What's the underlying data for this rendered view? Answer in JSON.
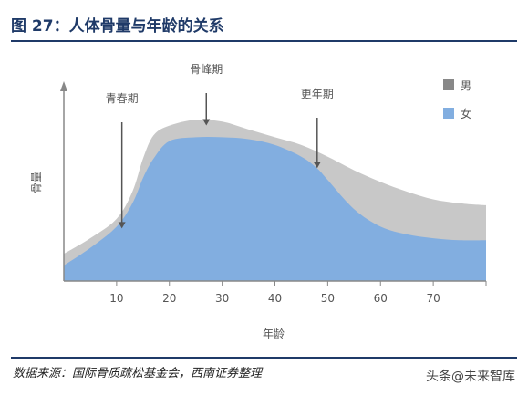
{
  "figure": {
    "title": "图 27：人体骨量与年龄的关系",
    "source": "数据来源：国际骨质疏松基金会，西南证券整理",
    "watermark": "头条@未来智库"
  },
  "colors": {
    "male": "#c8c8c8",
    "female": "#82aee0",
    "axis": "#888888",
    "title": "#1f3a68"
  },
  "chart_data": {
    "type": "area",
    "title": "",
    "xlabel": "年龄",
    "ylabel": "骨量",
    "xlim": [
      0,
      80
    ],
    "ylim": [
      0,
      1
    ],
    "x_ticks": [
      10,
      20,
      30,
      40,
      50,
      60,
      70
    ],
    "legend": {
      "position": "top-right",
      "entries": [
        {
          "name": "男",
          "color": "#888888"
        },
        {
          "name": "女",
          "color": "#82aee0"
        }
      ]
    },
    "series": [
      {
        "name": "男",
        "x": [
          0,
          5,
          10,
          13,
          15,
          17,
          20,
          25,
          30,
          35,
          40,
          45,
          50,
          55,
          60,
          65,
          70,
          75,
          80
        ],
        "values": [
          0.14,
          0.22,
          0.32,
          0.46,
          0.63,
          0.75,
          0.8,
          0.83,
          0.82,
          0.78,
          0.74,
          0.7,
          0.64,
          0.57,
          0.51,
          0.46,
          0.42,
          0.4,
          0.39
        ]
      },
      {
        "name": "女",
        "x": [
          0,
          5,
          10,
          13,
          15,
          17,
          20,
          25,
          30,
          35,
          40,
          45,
          48,
          50,
          55,
          60,
          65,
          70,
          75,
          80
        ],
        "values": [
          0.08,
          0.17,
          0.28,
          0.4,
          0.53,
          0.63,
          0.72,
          0.74,
          0.74,
          0.73,
          0.7,
          0.64,
          0.58,
          0.52,
          0.37,
          0.28,
          0.24,
          0.22,
          0.21,
          0.21
        ]
      }
    ],
    "annotations": [
      {
        "label": "青春期",
        "x": 11,
        "y": 0.28
      },
      {
        "label": "骨峰期",
        "x": 27,
        "y": 0.81
      },
      {
        "label": "更年期",
        "x": 48,
        "y": 0.59
      }
    ]
  }
}
